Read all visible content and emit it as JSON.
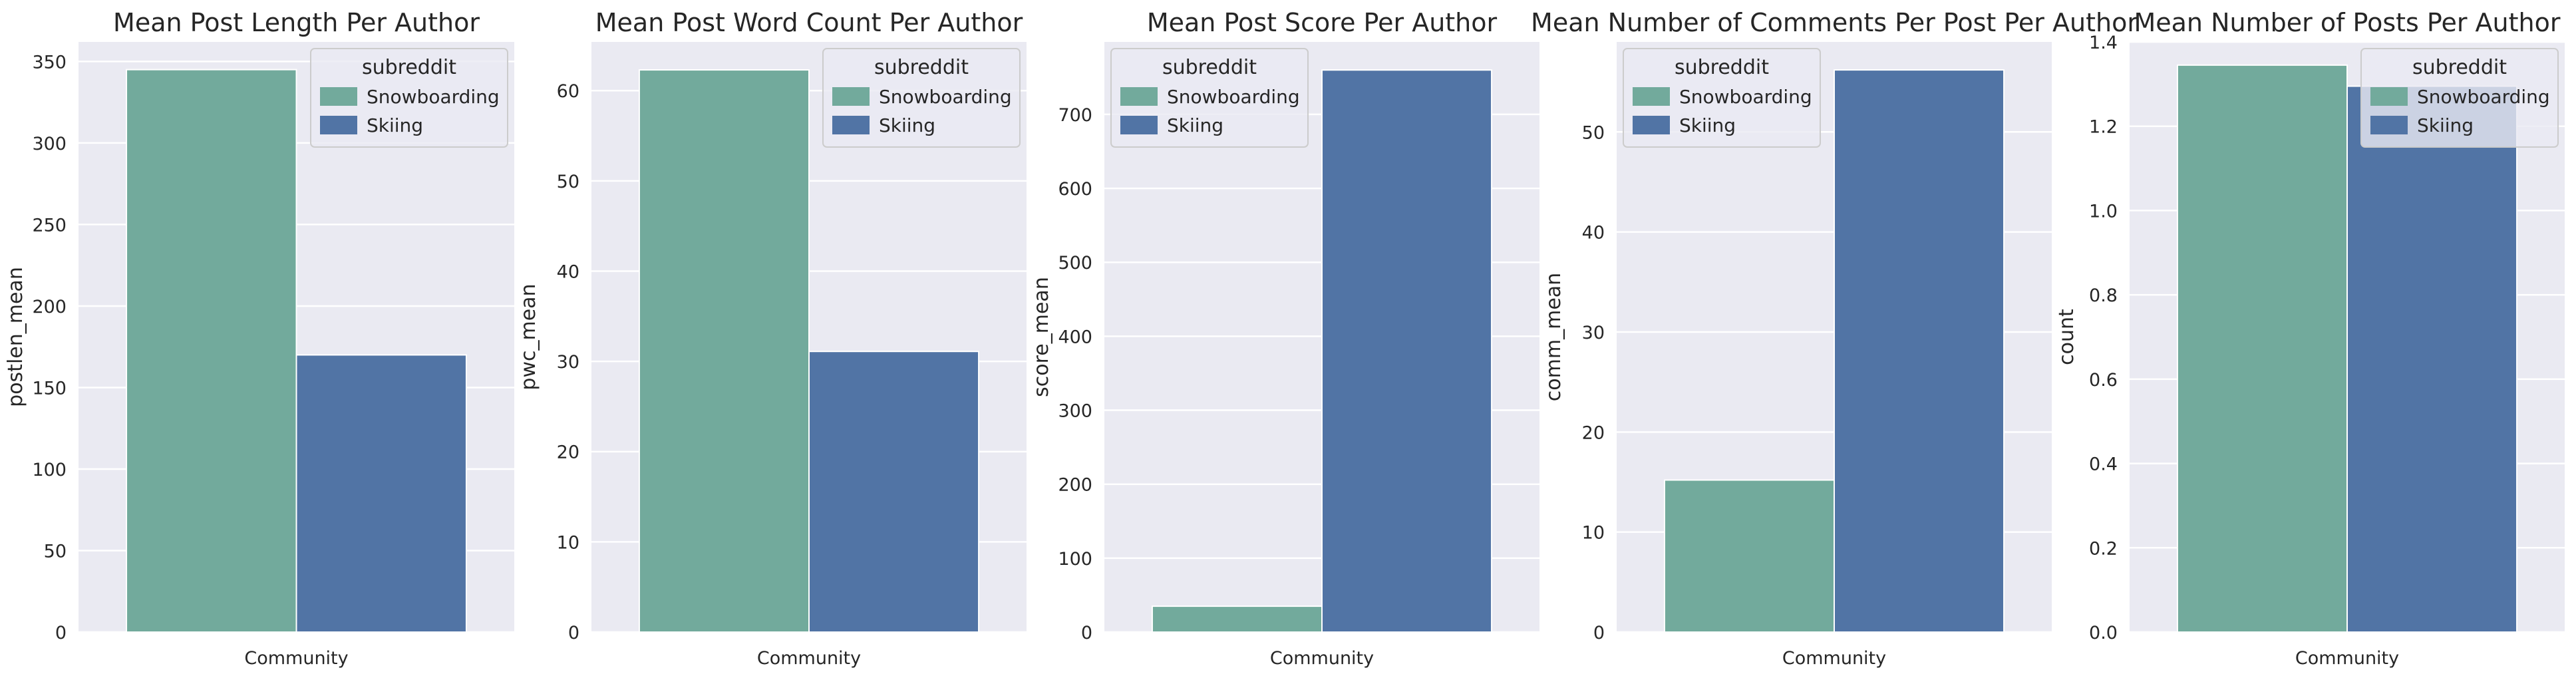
{
  "style": {
    "panel_bg": "#eaeaf2",
    "grid": "#ffffff",
    "colors": {
      "Snowboarding": "#72aa9c",
      "Skiing": "#5174a5"
    }
  },
  "chart_data": [
    {
      "type": "bar",
      "title": "Mean Post Length Per Author",
      "xlabel": "",
      "ylabel": "postlen_mean",
      "categories": [
        "Community"
      ],
      "series": [
        {
          "name": "Snowboarding",
          "values": [
            345
          ]
        },
        {
          "name": "Skiing",
          "values": [
            170
          ]
        }
      ],
      "ylim": [
        0,
        362
      ],
      "yticks": [
        0,
        50,
        100,
        150,
        200,
        250,
        300,
        350
      ],
      "ytick_labels": [
        "0",
        "50",
        "100",
        "150",
        "200",
        "250",
        "300",
        "350"
      ],
      "legend": {
        "title": "subreddit",
        "placement": "top-right"
      },
      "grid": true
    },
    {
      "type": "bar",
      "title": "Mean Post Word Count Per Author",
      "xlabel": "",
      "ylabel": "pwc_mean",
      "categories": [
        "Community"
      ],
      "series": [
        {
          "name": "Snowboarding",
          "values": [
            62.3
          ]
        },
        {
          "name": "Skiing",
          "values": [
            31.1
          ]
        }
      ],
      "ylim": [
        0,
        65.4
      ],
      "yticks": [
        0,
        10,
        20,
        30,
        40,
        50,
        60
      ],
      "ytick_labels": [
        "0",
        "10",
        "20",
        "30",
        "40",
        "50",
        "60"
      ],
      "legend": {
        "title": "subreddit",
        "placement": "top-right"
      },
      "grid": true
    },
    {
      "type": "bar",
      "title": "Mean Post Score Per Author",
      "xlabel": "",
      "ylabel": "score_mean",
      "categories": [
        "Community"
      ],
      "series": [
        {
          "name": "Snowboarding",
          "values": [
            35
          ]
        },
        {
          "name": "Skiing",
          "values": [
            760
          ]
        }
      ],
      "ylim": [
        0,
        798
      ],
      "yticks": [
        0,
        100,
        200,
        300,
        400,
        500,
        600,
        700
      ],
      "ytick_labels": [
        "0",
        "100",
        "200",
        "300",
        "400",
        "500",
        "600",
        "700"
      ],
      "legend": {
        "title": "subreddit",
        "placement": "top-left"
      },
      "grid": true
    },
    {
      "type": "bar",
      "title": "Mean Number of Comments Per Post Per Author",
      "xlabel": "",
      "ylabel": "comm_mean",
      "categories": [
        "Community"
      ],
      "series": [
        {
          "name": "Snowboarding",
          "values": [
            15.2
          ]
        },
        {
          "name": "Skiing",
          "values": [
            56.2
          ]
        }
      ],
      "ylim": [
        0,
        59.0
      ],
      "yticks": [
        0,
        10,
        20,
        30,
        40,
        50
      ],
      "ytick_labels": [
        "0",
        "10",
        "20",
        "30",
        "40",
        "50"
      ],
      "legend": {
        "title": "subreddit",
        "placement": "top-left"
      },
      "grid": true
    },
    {
      "type": "bar",
      "title": "Mean Number of Posts Per Author",
      "xlabel": "",
      "ylabel": "count",
      "categories": [
        "Community"
      ],
      "series": [
        {
          "name": "Snowboarding",
          "values": [
            1.345
          ]
        },
        {
          "name": "Skiing",
          "values": [
            1.295
          ]
        }
      ],
      "ylim": [
        0,
        1.4
      ],
      "yticks": [
        0,
        0.2,
        0.4,
        0.6,
        0.8,
        1.0,
        1.2,
        1.4
      ],
      "ytick_labels": [
        "0.0",
        "0.2",
        "0.4",
        "0.6",
        "0.8",
        "1.0",
        "1.2",
        "1.4"
      ],
      "legend": {
        "title": "subreddit",
        "placement": "top-right"
      },
      "grid": true
    }
  ]
}
